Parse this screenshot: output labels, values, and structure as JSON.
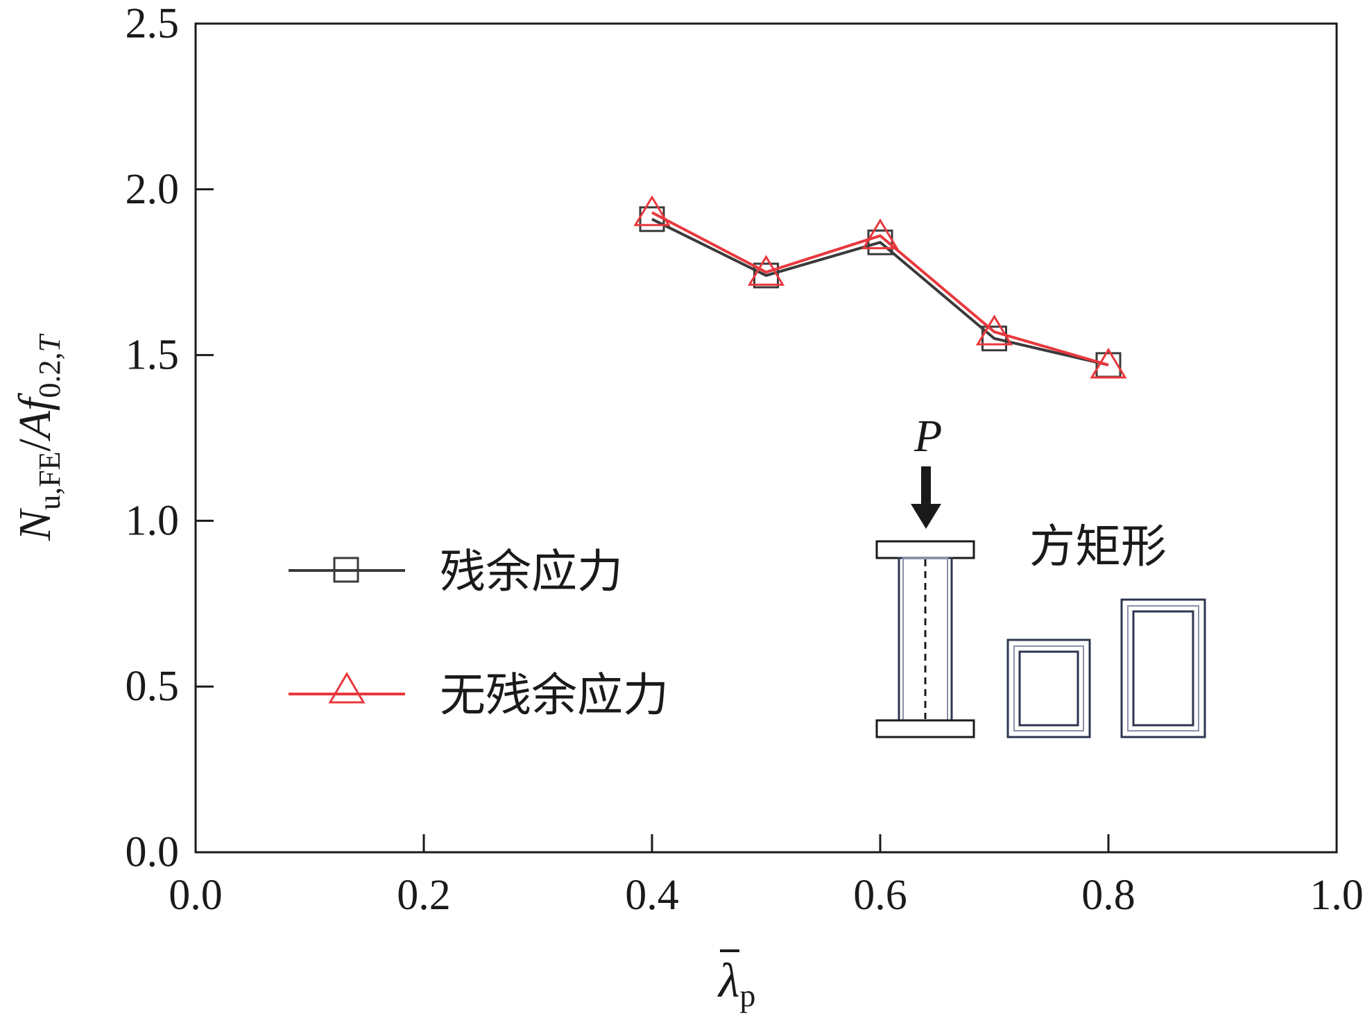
{
  "chart_data": {
    "type": "line",
    "x": [
      0.4,
      0.5,
      0.6,
      0.7,
      0.8
    ],
    "series": [
      {
        "name": "残余应力",
        "values": [
          1.91,
          1.74,
          1.84,
          1.55,
          1.47
        ],
        "color": "#3a3a3a",
        "marker": "square"
      },
      {
        "name": "无残余应力",
        "values": [
          1.93,
          1.75,
          1.86,
          1.57,
          1.47
        ],
        "color": "#e8383d",
        "marker": "triangle"
      }
    ],
    "xlim": [
      0.0,
      1.0
    ],
    "ylim": [
      0.0,
      2.5
    ],
    "xticks": [
      "0.0",
      "0.2",
      "0.4",
      "0.6",
      "0.8",
      "1.0"
    ],
    "yticks": [
      "0.0",
      "0.5",
      "1.0",
      "1.5",
      "2.0",
      "2.5"
    ],
    "xlabel": {
      "main": "λ",
      "sub": "p"
    },
    "ylabel": {
      "n": "N",
      "n_sub": "u,FE",
      "slash": "/",
      "a": "A",
      "f": "f",
      "f_sub": "0.2,",
      "t": "T"
    },
    "legend_placement": "lower-left",
    "grid": false,
    "inset": {
      "load_label": "P",
      "section_label": "方矩形"
    }
  }
}
